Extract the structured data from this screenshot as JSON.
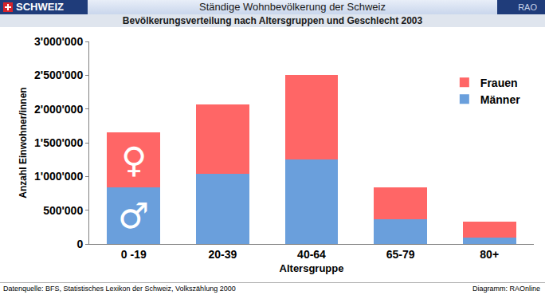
{
  "header": {
    "left": "SCHWEIZ",
    "right": "RAO"
  },
  "chart_data": {
    "type": "bar",
    "title": "Ständige Wohnbevölkerung der Schweiz",
    "subtitle": "Bevölkerungsverteilung nach Altersgruppen und Geschlecht 2003",
    "x_label": "Altersgruppe",
    "y_label": "Anzahl Einwohner/innen",
    "categories": [
      "0 -19",
      "20-39",
      "40-64",
      "65-79",
      "80+"
    ],
    "series": [
      {
        "name": "Männer",
        "color": "#6a9fdc",
        "values": [
          840000,
          1040000,
          1250000,
          370000,
          100000
        ]
      },
      {
        "name": "Frauen",
        "color": "#ff6666",
        "values": [
          810000,
          1030000,
          1250000,
          470000,
          225000
        ]
      }
    ],
    "stacked": true,
    "ylim": [
      0,
      3000000
    ],
    "yticks": [
      0,
      {
        "value": 500000,
        "label": "500'000"
      },
      {
        "value": 1000000,
        "label": "1'000'000"
      },
      {
        "value": 1500000,
        "label": "1'500'000"
      },
      {
        "value": 2000000,
        "label": "2'000'000"
      },
      {
        "value": 2500000,
        "label": "2'500'000"
      },
      {
        "value": 3000000,
        "label": "3'000'000"
      }
    ],
    "grid": false,
    "legend": "top-right",
    "annotations": [
      {
        "text": "♀",
        "category": "0 -19",
        "series": "Frauen"
      },
      {
        "text": "♂",
        "category": "0 -19",
        "series": "Männer"
      }
    ]
  },
  "footer": {
    "source": "Datenquelle: BFS, Statistisches Lexikon der Schweiz, Volkszählung 2000",
    "credit": "Diagramm: RAOnline"
  }
}
